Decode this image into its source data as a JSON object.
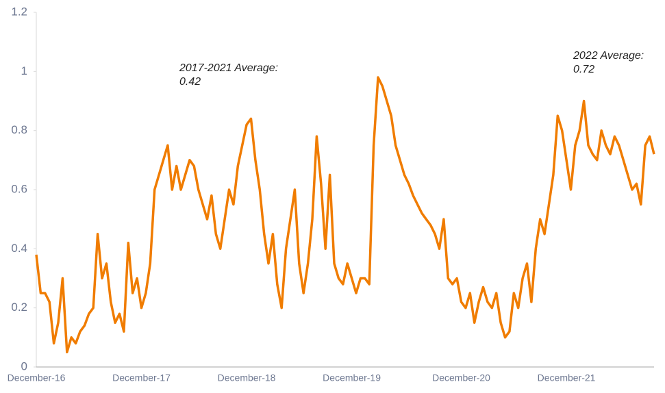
{
  "chart_data": {
    "type": "line",
    "categories": [
      "December-16",
      null,
      null,
      null,
      null,
      null,
      null,
      null,
      null,
      null,
      null,
      null,
      null,
      null,
      null,
      null,
      null,
      null,
      null,
      null,
      null,
      null,
      null,
      null,
      "December-17",
      null,
      null,
      null,
      null,
      null,
      null,
      null,
      null,
      null,
      null,
      null,
      null,
      null,
      null,
      null,
      null,
      null,
      null,
      null,
      null,
      null,
      null,
      null,
      "December-18",
      null,
      null,
      null,
      null,
      null,
      null,
      null,
      null,
      null,
      null,
      null,
      null,
      null,
      null,
      null,
      null,
      null,
      null,
      null,
      null,
      null,
      null,
      null,
      "December-19",
      null,
      null,
      null,
      null,
      null,
      null,
      null,
      null,
      null,
      null,
      null,
      null,
      null,
      null,
      null,
      null,
      null,
      null,
      null,
      null,
      null,
      null,
      null,
      null,
      "December-20",
      null,
      null,
      null,
      null,
      null,
      null,
      null,
      null,
      null,
      null,
      null,
      null,
      null,
      null,
      null,
      null,
      null,
      null,
      null,
      null,
      null,
      null,
      null,
      "December-21",
      null,
      null,
      null,
      null,
      null,
      null,
      null,
      null,
      null,
      null,
      null,
      null,
      null,
      null,
      null,
      null,
      null,
      null,
      null,
      null
    ],
    "series": [
      {
        "color": "#f07c00",
        "values": [
          0.38,
          0.25,
          0.25,
          0.22,
          0.08,
          0.15,
          0.3,
          0.05,
          0.1,
          0.08,
          0.12,
          0.14,
          0.18,
          0.2,
          0.45,
          0.3,
          0.35,
          0.22,
          0.15,
          0.18,
          0.12,
          0.42,
          0.25,
          0.3,
          0.2,
          0.25,
          0.35,
          0.6,
          0.65,
          0.7,
          0.75,
          0.6,
          0.68,
          0.6,
          0.65,
          0.7,
          0.68,
          0.6,
          0.55,
          0.5,
          0.58,
          0.45,
          0.4,
          0.5,
          0.6,
          0.55,
          0.68,
          0.75,
          0.82,
          0.84,
          0.7,
          0.6,
          0.45,
          0.35,
          0.45,
          0.28,
          0.2,
          0.4,
          0.5,
          0.6,
          0.35,
          0.25,
          0.35,
          0.5,
          0.78,
          0.62,
          0.4,
          0.65,
          0.35,
          0.3,
          0.28,
          0.35,
          0.3,
          0.25,
          0.3,
          0.3,
          0.28,
          0.75,
          0.98,
          0.95,
          0.9,
          0.85,
          0.75,
          0.7,
          0.65,
          0.62,
          0.58,
          0.55,
          0.52,
          0.5,
          0.48,
          0.45,
          0.4,
          0.5,
          0.3,
          0.28,
          0.3,
          0.22,
          0.2,
          0.25,
          0.15,
          0.22,
          0.27,
          0.22,
          0.2,
          0.25,
          0.15,
          0.1,
          0.12,
          0.25,
          0.2,
          0.3,
          0.35,
          0.22,
          0.4,
          0.5,
          0.45,
          0.55,
          0.65,
          0.85,
          0.8,
          0.7,
          0.6,
          0.75,
          0.8,
          0.9,
          0.75,
          0.72,
          0.7,
          0.8,
          0.75,
          0.72,
          0.78,
          0.75,
          0.7,
          0.65,
          0.6,
          0.62,
          0.55,
          0.75,
          0.78,
          0.72
        ]
      }
    ],
    "ylim": [
      0,
      1.2
    ],
    "yticks": [
      0,
      0.2,
      0.4,
      0.6,
      0.8,
      1,
      {
        "value": 1.2,
        "label": "1.2"
      }
    ],
    "grid": false,
    "annotations": [
      {
        "lines": [
          "2017-2021 Average:",
          "0.42"
        ]
      },
      {
        "lines": [
          "2022 Average:",
          "0.72"
        ]
      }
    ]
  }
}
